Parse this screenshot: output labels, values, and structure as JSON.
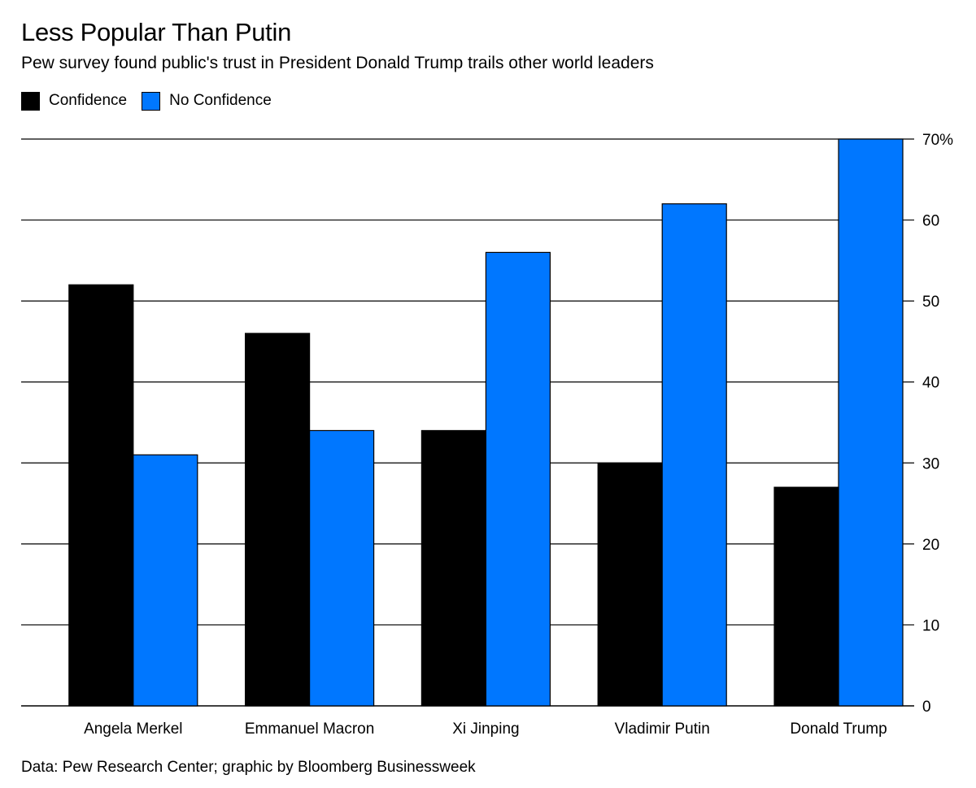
{
  "chart_data": {
    "type": "bar",
    "title": "Less Popular Than Putin",
    "subtitle": "Pew survey found public's trust in President Donald Trump trails other world leaders",
    "categories": [
      "Angela Merkel",
      "Emmanuel Macron",
      "Xi Jinping",
      "Vladimir Putin",
      "Donald Trump"
    ],
    "series": [
      {
        "name": "Confidence",
        "color": "#000000",
        "values": [
          52,
          46,
          34,
          30,
          27
        ]
      },
      {
        "name": "No Confidence",
        "color": "#0077ff",
        "values": [
          31,
          34,
          56,
          62,
          70
        ]
      }
    ],
    "ylim": [
      0,
      70
    ],
    "yticks": [
      0,
      10,
      20,
      30,
      40,
      50,
      60,
      70
    ],
    "ytick_labels": [
      "0",
      "10",
      "20",
      "30",
      "40",
      "50",
      "60",
      "70%"
    ],
    "y_axis_position": "right",
    "grid": true,
    "legend_position": "top-left",
    "xlabel": "",
    "ylabel": ""
  },
  "source": "Data: Pew Research Center; graphic by Bloomberg Businessweek"
}
